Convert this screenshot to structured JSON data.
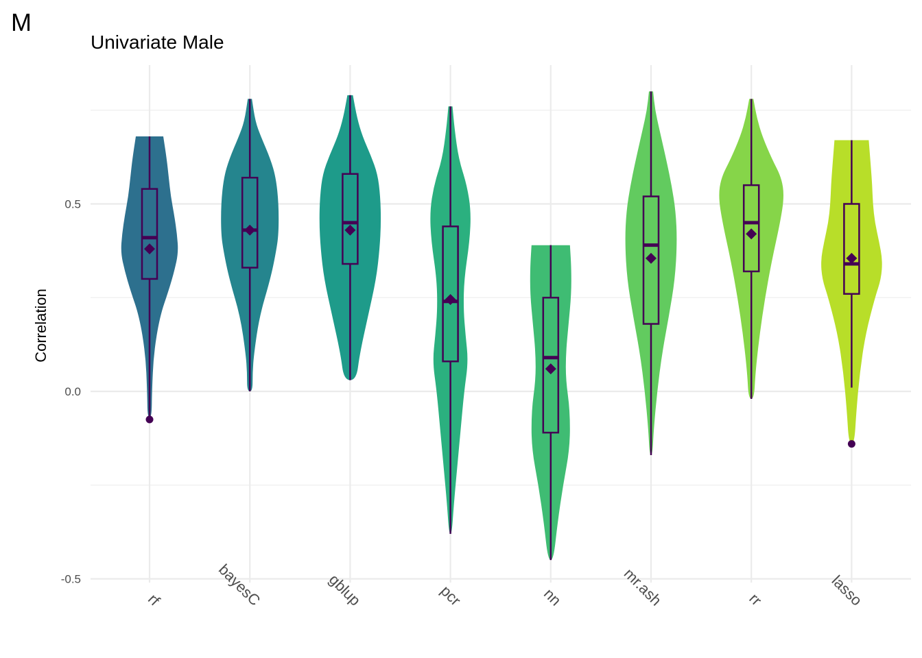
{
  "panel_tag": "M",
  "chart_data": {
    "type": "violin",
    "title": "Univariate Male",
    "xlabel": "",
    "ylabel": "Correlation",
    "ylim": [
      -0.5,
      0.8
    ],
    "yticks": [
      -0.5,
      0.0,
      0.5
    ],
    "ytick_labels": [
      "-0.5",
      "0.0",
      "0.5"
    ],
    "grid": true,
    "legend": "none",
    "categories": [
      "rf",
      "bayesC",
      "gblup",
      "pcr",
      "nn",
      "mr.ash",
      "rr",
      "lasso"
    ],
    "colors": [
      "#2D708E",
      "#25858E",
      "#1E9B8A",
      "#2BB07F",
      "#3FBC73",
      "#62CB5F",
      "#86D549",
      "#B8DE29"
    ],
    "accent_color": "#440154",
    "series": [
      {
        "category": "rf",
        "min": -0.07,
        "q1": 0.3,
        "median": 0.41,
        "q3": 0.54,
        "max": 0.68,
        "mean": 0.38,
        "outliers": [
          -0.075
        ],
        "density": [
          [
            -0.07,
            0.03
          ],
          [
            0.0,
            0.035
          ],
          [
            0.1,
            0.06
          ],
          [
            0.2,
            0.15
          ],
          [
            0.27,
            0.28
          ],
          [
            0.32,
            0.36
          ],
          [
            0.37,
            0.42
          ],
          [
            0.42,
            0.4
          ],
          [
            0.47,
            0.36
          ],
          [
            0.52,
            0.31
          ],
          [
            0.57,
            0.28
          ],
          [
            0.62,
            0.25
          ],
          [
            0.68,
            0.2
          ]
        ]
      },
      {
        "category": "bayesC",
        "min": 0.0,
        "q1": 0.33,
        "median": 0.43,
        "q3": 0.57,
        "max": 0.78,
        "mean": 0.43,
        "outliers": [],
        "density": [
          [
            0.0,
            0.04
          ],
          [
            0.05,
            0.04
          ],
          [
            0.1,
            0.06
          ],
          [
            0.2,
            0.14
          ],
          [
            0.3,
            0.3
          ],
          [
            0.37,
            0.38
          ],
          [
            0.42,
            0.42
          ],
          [
            0.5,
            0.42
          ],
          [
            0.57,
            0.38
          ],
          [
            0.62,
            0.3
          ],
          [
            0.68,
            0.16
          ],
          [
            0.72,
            0.08
          ],
          [
            0.78,
            0.03
          ]
        ]
      },
      {
        "category": "gblup",
        "min": 0.03,
        "q1": 0.34,
        "median": 0.45,
        "q3": 0.58,
        "max": 0.79,
        "mean": 0.43,
        "outliers": [],
        "density": [
          [
            0.03,
            0.09
          ],
          [
            0.1,
            0.14
          ],
          [
            0.2,
            0.26
          ],
          [
            0.3,
            0.38
          ],
          [
            0.38,
            0.43
          ],
          [
            0.45,
            0.45
          ],
          [
            0.52,
            0.44
          ],
          [
            0.58,
            0.4
          ],
          [
            0.63,
            0.3
          ],
          [
            0.68,
            0.18
          ],
          [
            0.73,
            0.1
          ],
          [
            0.79,
            0.04
          ]
        ]
      },
      {
        "category": "pcr",
        "min": -0.38,
        "q1": 0.08,
        "median": 0.24,
        "q3": 0.44,
        "max": 0.76,
        "mean": 0.245,
        "outliers": [],
        "density": [
          [
            -0.38,
            0.02
          ],
          [
            -0.3,
            0.05
          ],
          [
            -0.2,
            0.1
          ],
          [
            -0.1,
            0.15
          ],
          [
            0.0,
            0.2
          ],
          [
            0.08,
            0.26
          ],
          [
            0.15,
            0.22
          ],
          [
            0.22,
            0.19
          ],
          [
            0.3,
            0.2
          ],
          [
            0.4,
            0.28
          ],
          [
            0.48,
            0.3
          ],
          [
            0.55,
            0.24
          ],
          [
            0.62,
            0.12
          ],
          [
            0.7,
            0.06
          ],
          [
            0.76,
            0.03
          ]
        ]
      },
      {
        "category": "nn",
        "min": -0.45,
        "q1": -0.11,
        "median": 0.09,
        "q3": 0.25,
        "max": 0.39,
        "mean": 0.06,
        "outliers": [],
        "density": [
          [
            -0.45,
            0.04
          ],
          [
            -0.35,
            0.1
          ],
          [
            -0.25,
            0.18
          ],
          [
            -0.15,
            0.28
          ],
          [
            -0.05,
            0.28
          ],
          [
            0.03,
            0.22
          ],
          [
            0.1,
            0.22
          ],
          [
            0.18,
            0.26
          ],
          [
            0.26,
            0.3
          ],
          [
            0.33,
            0.3
          ],
          [
            0.39,
            0.28
          ]
        ]
      },
      {
        "category": "mr.ash",
        "min": -0.17,
        "q1": 0.18,
        "median": 0.39,
        "q3": 0.52,
        "max": 0.8,
        "mean": 0.355,
        "outliers": [],
        "density": [
          [
            -0.17,
            0.02
          ],
          [
            -0.1,
            0.04
          ],
          [
            0.0,
            0.09
          ],
          [
            0.1,
            0.16
          ],
          [
            0.2,
            0.26
          ],
          [
            0.3,
            0.35
          ],
          [
            0.4,
            0.38
          ],
          [
            0.48,
            0.36
          ],
          [
            0.55,
            0.3
          ],
          [
            0.62,
            0.22
          ],
          [
            0.7,
            0.12
          ],
          [
            0.75,
            0.06
          ],
          [
            0.8,
            0.03
          ]
        ]
      },
      {
        "category": "rr",
        "min": -0.02,
        "q1": 0.32,
        "median": 0.45,
        "q3": 0.55,
        "max": 0.78,
        "mean": 0.42,
        "outliers": [],
        "density": [
          [
            -0.02,
            0.04
          ],
          [
            0.05,
            0.06
          ],
          [
            0.15,
            0.12
          ],
          [
            0.25,
            0.2
          ],
          [
            0.35,
            0.3
          ],
          [
            0.45,
            0.42
          ],
          [
            0.52,
            0.48
          ],
          [
            0.57,
            0.44
          ],
          [
            0.62,
            0.3
          ],
          [
            0.68,
            0.16
          ],
          [
            0.73,
            0.08
          ],
          [
            0.78,
            0.03
          ]
        ]
      },
      {
        "category": "lasso",
        "min": 0.01,
        "q1": 0.26,
        "median": 0.34,
        "q3": 0.5,
        "max": 0.67,
        "mean": 0.355,
        "outliers": [
          -0.14
        ],
        "density": [
          [
            -0.14,
            0.04
          ],
          [
            -0.05,
            0.07
          ],
          [
            0.05,
            0.12
          ],
          [
            0.15,
            0.2
          ],
          [
            0.25,
            0.34
          ],
          [
            0.3,
            0.43
          ],
          [
            0.35,
            0.45
          ],
          [
            0.4,
            0.4
          ],
          [
            0.45,
            0.34
          ],
          [
            0.5,
            0.31
          ],
          [
            0.55,
            0.3
          ],
          [
            0.6,
            0.28
          ],
          [
            0.67,
            0.25
          ]
        ]
      }
    ]
  }
}
